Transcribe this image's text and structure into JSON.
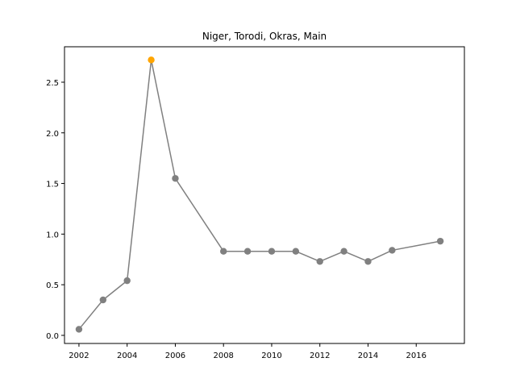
{
  "chart_data": {
    "type": "line",
    "title": "Niger, Torodi, Okras, Main",
    "xlabel": "",
    "ylabel": "",
    "xlim": [
      2001.4,
      2018.0
    ],
    "ylim": [
      -0.08,
      2.85
    ],
    "grid": false,
    "x_ticks": [
      2002,
      2004,
      2006,
      2008,
      2010,
      2012,
      2014,
      2016
    ],
    "y_ticks": [
      0.0,
      0.5,
      1.0,
      1.5,
      2.0,
      2.5
    ],
    "y_tick_labels": [
      "0.0",
      "0.5",
      "1.0",
      "1.5",
      "2.0",
      "2.5"
    ],
    "series": [
      {
        "line_color": "#808080",
        "marker_color": "#808080",
        "highlight_color": "#FFA500",
        "highlight_index": 3,
        "points": [
          {
            "x": 2002,
            "y": 0.06
          },
          {
            "x": 2003,
            "y": 0.35
          },
          {
            "x": 2004,
            "y": 0.54
          },
          {
            "x": 2005,
            "y": 2.72
          },
          {
            "x": 2006,
            "y": 1.55
          },
          {
            "x": 2008,
            "y": 0.83
          },
          {
            "x": 2009,
            "y": 0.83
          },
          {
            "x": 2010,
            "y": 0.83
          },
          {
            "x": 2011,
            "y": 0.83
          },
          {
            "x": 2012,
            "y": 0.73
          },
          {
            "x": 2013,
            "y": 0.83
          },
          {
            "x": 2014,
            "y": 0.73
          },
          {
            "x": 2015,
            "y": 0.84
          },
          {
            "x": 2017,
            "y": 0.93
          }
        ]
      }
    ]
  }
}
